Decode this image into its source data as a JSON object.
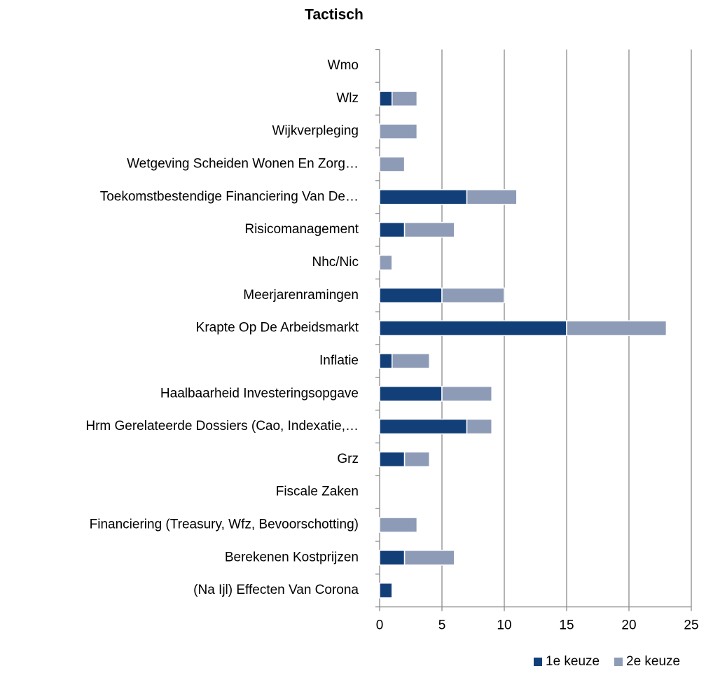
{
  "chart_data": {
    "type": "stacked_barh",
    "title": "Tactisch",
    "categories": [
      "Wmo",
      "Wlz",
      "Wijkverpleging",
      "Wetgeving Scheiden Wonen En Zorg…",
      "Toekomstbestendige Financiering Van De…",
      "Risicomanagement",
      "Nhc/Nic",
      "Meerjarenramingen",
      "Krapte Op De Arbeidsmarkt",
      "Inflatie",
      "Haalbaarheid Investeringsopgave",
      "Hrm Gerelateerde Dossiers (Cao, Indexatie,…",
      "Grz",
      "Fiscale Zaken",
      "Financiering (Treasury, Wfz, Bevoorschotting)",
      "Berekenen Kostprijzen",
      "(Na Ijl) Effecten Van Corona"
    ],
    "series": [
      {
        "name": "1e keuze",
        "color": "#123f78",
        "values": [
          0,
          1,
          0,
          0,
          7,
          2,
          0,
          5,
          15,
          1,
          5,
          7,
          2,
          0,
          0,
          2,
          1
        ]
      },
      {
        "name": "2e keuze",
        "color": "#8d9bb6",
        "values": [
          0,
          2,
          3,
          2,
          4,
          4,
          1,
          5,
          8,
          3,
          4,
          2,
          2,
          0,
          3,
          4,
          0
        ]
      }
    ],
    "xlim": [
      0,
      25
    ],
    "xticks": [
      0,
      5,
      10,
      15,
      20,
      25
    ],
    "grid": true,
    "legend": "bottom"
  }
}
